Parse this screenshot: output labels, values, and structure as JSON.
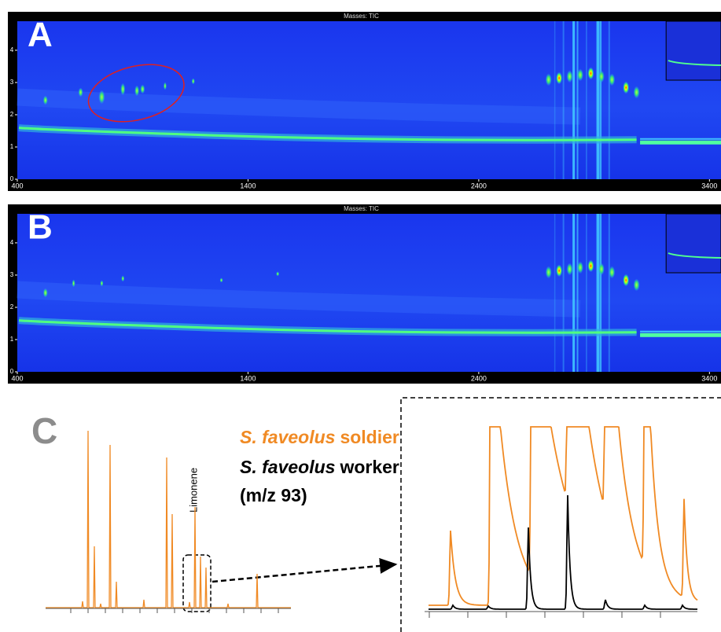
{
  "panels": [
    {
      "label": "A",
      "title": "Masses: TIC",
      "xlim": [
        400,
        3450
      ],
      "xticks": [
        400,
        1400,
        2400,
        3400
      ],
      "ylim": [
        0,
        4.9
      ],
      "yticks": [
        0,
        1,
        2,
        3,
        4
      ]
    },
    {
      "label": "B",
      "title": "Masses: TIC",
      "xlim": [
        400,
        3450
      ],
      "xticks": [
        400,
        1400,
        2400,
        3400
      ],
      "ylim": [
        0,
        4.9
      ],
      "yticks": [
        0,
        1,
        2,
        3,
        4
      ]
    }
  ],
  "panel_c": {
    "label": "C",
    "legend": [
      {
        "species": "S. faveolus",
        "caste": "soldier",
        "color": "#f08a24"
      },
      {
        "species": "S. faveolus",
        "caste": "worker",
        "color": "#000000"
      }
    ],
    "note": "(m/z 93)",
    "annotation": "Limonene"
  }
}
